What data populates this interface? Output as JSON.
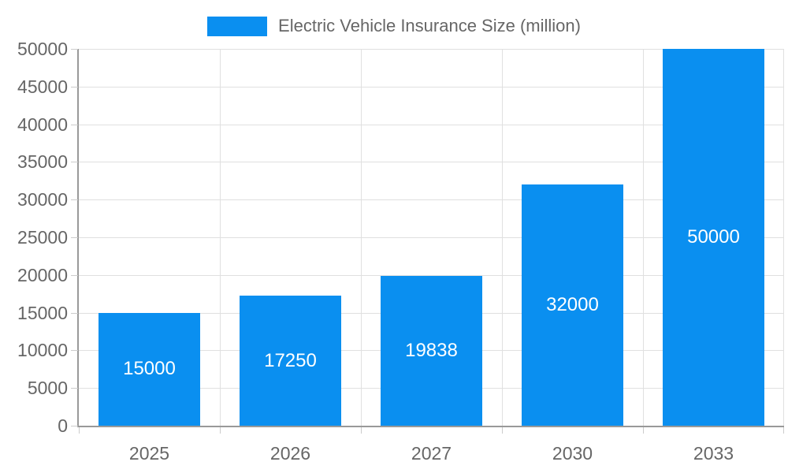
{
  "chart_data": {
    "type": "bar",
    "title": "Electric Vehicle Insurance Size (million)",
    "categories": [
      "2025",
      "2026",
      "2027",
      "2030",
      "2033"
    ],
    "values": [
      15000,
      17250,
      19838,
      32000,
      50000
    ],
    "bar_labels": [
      "15000",
      "17250",
      "19838",
      "32000",
      "50000"
    ],
    "xlabel": "",
    "ylabel": "",
    "ylim": [
      0,
      50000
    ],
    "ytick_step": 5000,
    "ytick_labels": [
      "0",
      "5000",
      "10000",
      "15000",
      "20000",
      "25000",
      "30000",
      "35000",
      "40000",
      "45000",
      "50000"
    ],
    "legend_position": "top-center",
    "grid": true,
    "colors": {
      "bar": "#0a8ff0",
      "bar_label_text": "#ffffff",
      "gridline": "#e0e0e0",
      "axis_line": "#999999",
      "tick": "#cccccc",
      "axis_text": "#666666",
      "background": "#ffffff"
    }
  }
}
